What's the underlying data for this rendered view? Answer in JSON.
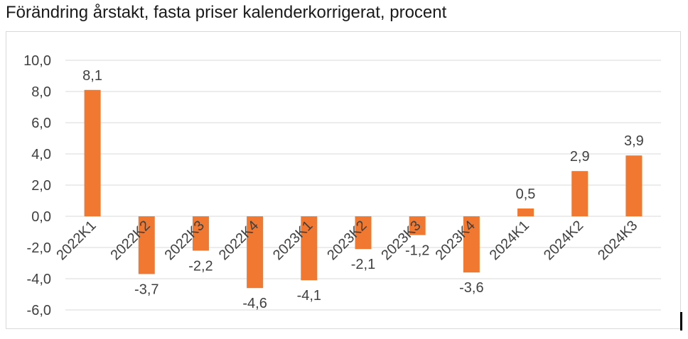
{
  "title": "Förändring årstakt, fasta priser kalenderkorrigerat, procent",
  "colors": {
    "bar": "#F07830",
    "grid": "#d9d9d9",
    "text": "#404040",
    "frame": "#d9d9d9"
  },
  "chart_data": {
    "type": "bar",
    "title": "Förändring årstakt, fasta priser kalenderkorrigerat, procent",
    "categories": [
      "2022K1",
      "2022K2",
      "2022K3",
      "2022K4",
      "2023K1",
      "2023K2",
      "2023K3",
      "2023K4",
      "2024K1",
      "2024K2",
      "2024K3"
    ],
    "values": [
      8.1,
      -3.7,
      -2.2,
      -4.6,
      -4.1,
      -2.1,
      -1.2,
      -3.6,
      0.5,
      2.9,
      3.9
    ],
    "value_labels": [
      "8,1",
      "-3,7",
      "-2,2",
      "-4,6",
      "-4,1",
      "-2,1",
      "-1,2",
      "-3,6",
      "0,5",
      "2,9",
      "3,9"
    ],
    "y_ticks": [
      10,
      8,
      6,
      4,
      2,
      0,
      -2,
      -4,
      -6
    ],
    "y_tick_labels": [
      "10,0",
      "8,0",
      "6,0",
      "4,0",
      "2,0",
      "0,0",
      "-2,0",
      "-4,0",
      "-6,0"
    ],
    "ylim": [
      -6,
      10
    ],
    "grid": true,
    "legend": "none"
  }
}
